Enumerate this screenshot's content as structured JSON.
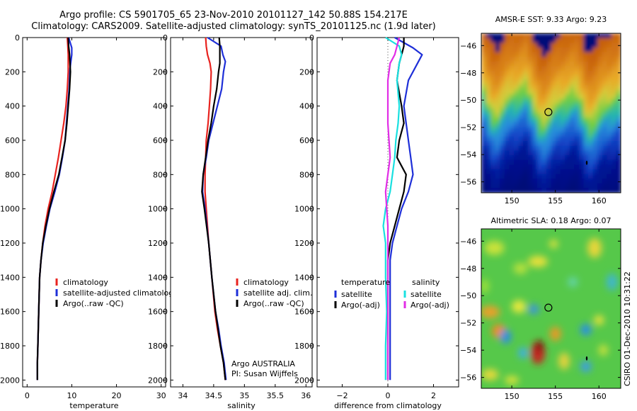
{
  "header": {
    "title_line1": "Argo profile: CS 5901705_65 23-Nov-2010 20101127_142 50.88S 154.217E",
    "title_line2": "Climatology: CARS2009. Satellite-adjusted climatology: synTS_20101125.nc (1.9d later)"
  },
  "colors": {
    "climatology": "#e8231f",
    "satellite": "#1e2fd8",
    "argo": "#000000",
    "cyan": "#19e0e0",
    "magenta": "#e12de6"
  },
  "chart_data": [
    {
      "type": "line",
      "id": "temperature",
      "xlabel": "temperature",
      "ylabel": "",
      "xlim": [
        -1,
        31
      ],
      "ylim": [
        2040,
        0
      ],
      "x_ticks": [
        0,
        10,
        20,
        30
      ],
      "y_ticks": [
        0,
        200,
        400,
        600,
        800,
        1000,
        1200,
        1400,
        1600,
        1800,
        2000
      ],
      "legend": [
        "climatology",
        "satellite-adjusted climatology",
        "Argo(..raw -QC)"
      ],
      "series": [
        {
          "name": "climatology",
          "color_key": "climatology",
          "x": [
            9.0,
            9.1,
            9.2,
            9.2,
            9.0,
            8.7,
            8.2,
            7.6,
            7.0,
            6.3,
            5.6,
            4.7,
            4.0,
            3.5,
            3.1,
            2.8,
            2.6,
            2.4,
            2.3,
            2.3
          ],
          "y": [
            0,
            50,
            100,
            200,
            300,
            400,
            500,
            600,
            700,
            800,
            900,
            1000,
            1100,
            1200,
            1300,
            1400,
            1600,
            1800,
            1900,
            2000
          ]
        },
        {
          "name": "satellite-adjusted climatology",
          "color_key": "satellite",
          "x": [
            9.3,
            10.0,
            10.0,
            9.6,
            9.4,
            9.1,
            8.8,
            8.5,
            7.9,
            7.2,
            6.2,
            5.1,
            4.3,
            3.6,
            3.1,
            2.8,
            2.6,
            2.4,
            2.3,
            2.3
          ],
          "y": [
            0,
            60,
            100,
            180,
            300,
            400,
            500,
            600,
            700,
            800,
            900,
            1000,
            1100,
            1200,
            1300,
            1400,
            1600,
            1800,
            1900,
            2000
          ]
        },
        {
          "name": "Argo(..raw -QC)",
          "color_key": "argo",
          "x": [
            9.2,
            9.3,
            9.5,
            9.7,
            9.5,
            9.2,
            8.9,
            8.5,
            7.8,
            7.1,
            6.0,
            5.0,
            4.2,
            3.5,
            3.1,
            2.8,
            2.6,
            2.4,
            2.3,
            2.3
          ],
          "y": [
            0,
            50,
            100,
            200,
            300,
            400,
            500,
            600,
            700,
            800,
            900,
            1000,
            1100,
            1200,
            1300,
            1400,
            1600,
            1800,
            1900,
            2000
          ]
        }
      ]
    },
    {
      "type": "line",
      "id": "salinity",
      "xlabel": "salinity",
      "ylabel": "",
      "xlim": [
        33.8,
        36.1
      ],
      "ylim": [
        2040,
        0
      ],
      "x_ticks": [
        34,
        34.5,
        35,
        35.5,
        36
      ],
      "x_tick_labels": [
        "34",
        "34.5",
        "35",
        "35.5",
        "36"
      ],
      "y_ticks": [
        0,
        200,
        400,
        600,
        800,
        1000,
        1200,
        1400,
        1600,
        1800,
        2000
      ],
      "legend": [
        "climatology",
        "satellite adj. clim.",
        "Argo(..raw -QC)"
      ],
      "annotation": [
        "Argo AUSTRALIA",
        "PI: Susan Wijffels"
      ],
      "series": [
        {
          "name": "climatology",
          "color_key": "climatology",
          "x": [
            34.37,
            34.38,
            34.4,
            34.44,
            34.46,
            34.45,
            34.43,
            34.41,
            34.38,
            34.37,
            34.36,
            34.36,
            34.38,
            34.42,
            34.47,
            34.52,
            34.56,
            34.61,
            34.66,
            34.69
          ],
          "y": [
            0,
            50,
            100,
            150,
            200,
            300,
            400,
            500,
            600,
            700,
            800,
            900,
            1000,
            1200,
            1400,
            1600,
            1700,
            1800,
            1900,
            2000
          ]
        },
        {
          "name": "satellite adj. clim.",
          "color_key": "satellite",
          "x": [
            34.4,
            34.62,
            34.65,
            34.69,
            34.66,
            34.63,
            34.56,
            34.49,
            34.42,
            34.38,
            34.33,
            34.32,
            34.36,
            34.42,
            34.47,
            34.53,
            34.58,
            34.62,
            34.67,
            34.7
          ],
          "y": [
            0,
            50,
            100,
            140,
            200,
            300,
            400,
            500,
            600,
            700,
            800,
            900,
            1000,
            1200,
            1400,
            1600,
            1700,
            1800,
            1900,
            2000
          ]
        },
        {
          "name": "Argo(..raw -QC)",
          "color_key": "argo",
          "x": [
            34.59,
            34.6,
            34.6,
            34.6,
            34.58,
            34.55,
            34.5,
            34.46,
            34.41,
            34.37,
            34.33,
            34.31,
            34.35,
            34.42,
            34.47,
            34.53,
            34.57,
            34.61,
            34.66,
            34.69
          ],
          "y": [
            0,
            50,
            100,
            150,
            200,
            300,
            400,
            500,
            600,
            700,
            800,
            900,
            1000,
            1200,
            1400,
            1600,
            1700,
            1800,
            1900,
            2000
          ]
        }
      ]
    },
    {
      "type": "line",
      "id": "difference",
      "xlabel": "difference from climatology",
      "ylabel": "",
      "xlim": [
        -3.1,
        3.1
      ],
      "ylim": [
        2040,
        0
      ],
      "x_ticks": [
        -2,
        0,
        2
      ],
      "y_ticks": [
        0,
        200,
        400,
        600,
        800,
        1000,
        1200,
        1400,
        1600,
        1800,
        2000
      ],
      "zero_line": 0,
      "legend_headers": [
        "temperature",
        "salinity"
      ],
      "legend": [
        {
          "label": "satellite",
          "color_key": "satellite",
          "column": 0
        },
        {
          "label": "Argo(-adj)",
          "color_key": "argo",
          "column": 0
        },
        {
          "label": "satellite",
          "color_key": "cyan",
          "column": 1
        },
        {
          "label": "Argo(-adj)",
          "color_key": "magenta",
          "column": 1
        }
      ],
      "series": [
        {
          "name": "temperature satellite",
          "color_key": "satellite",
          "x": [
            0.3,
            1.1,
            1.5,
            1.3,
            0.9,
            0.7,
            0.8,
            0.9,
            1.0,
            1.1,
            0.9,
            0.6,
            0.4,
            0.2,
            0.1,
            0.1,
            0.1,
            0.1
          ],
          "y": [
            0,
            60,
            100,
            150,
            250,
            400,
            500,
            600,
            700,
            800,
            900,
            1000,
            1100,
            1200,
            1300,
            1500,
            1800,
            2000
          ]
        },
        {
          "name": "temperature Argo(-adj)",
          "color_key": "argo",
          "x": [
            0.7,
            0.7,
            0.6,
            0.5,
            0.4,
            0.6,
            0.7,
            0.5,
            0.4,
            0.8,
            0.7,
            0.5,
            0.3,
            0.1,
            0.0,
            0.0,
            0.0,
            0.0
          ],
          "y": [
            0,
            50,
            100,
            150,
            250,
            400,
            500,
            600,
            700,
            800,
            900,
            1000,
            1100,
            1200,
            1300,
            1500,
            1800,
            2000
          ]
        },
        {
          "name": "salinity satellite",
          "color_key": "cyan",
          "x": [
            -0.1,
            0.5,
            0.6,
            0.5,
            0.4,
            0.5,
            0.45,
            0.35,
            0.3,
            0.2,
            0.1,
            -0.1,
            -0.2,
            -0.1,
            -0.1,
            -0.05,
            -0.1,
            -0.1
          ],
          "y": [
            0,
            50,
            100,
            150,
            250,
            400,
            500,
            600,
            700,
            800,
            900,
            1000,
            1100,
            1200,
            1400,
            1600,
            1800,
            2000
          ]
        },
        {
          "name": "salinity Argo(-adj)",
          "color_key": "magenta",
          "x": [
            0.5,
            0.4,
            0.3,
            0.1,
            0.0,
            0.0,
            0.0,
            0.05,
            0.1,
            0.0,
            -0.1,
            -0.05,
            0.0,
            0.0,
            0.0,
            0.0,
            0.0,
            0.0
          ],
          "y": [
            0,
            50,
            100,
            150,
            250,
            400,
            500,
            600,
            700,
            800,
            900,
            1000,
            1100,
            1200,
            1400,
            1600,
            1800,
            2000
          ]
        }
      ]
    },
    {
      "type": "heatmap",
      "id": "sst",
      "title": "AMSR-E SST: 9.33 Argo: 9.23",
      "xlim": [
        146.5,
        162.5
      ],
      "ylim": [
        -56.8,
        -45.1
      ],
      "x_ticks": [
        150,
        155,
        160
      ],
      "y_ticks": [
        -46,
        -48,
        -50,
        -52,
        -54,
        -56
      ],
      "marker": {
        "lon": 154.2,
        "lat": -50.88
      }
    },
    {
      "type": "heatmap",
      "id": "sla",
      "title": "Altimetric SLA: 0.18 Argo: 0.07",
      "xlim": [
        146.5,
        162.5
      ],
      "ylim": [
        -56.8,
        -45.1
      ],
      "x_ticks": [
        150,
        155,
        160
      ],
      "y_ticks": [
        -46,
        -48,
        -50,
        -52,
        -54,
        -56
      ],
      "marker": {
        "lon": 154.2,
        "lat": -50.88
      }
    }
  ],
  "footer": {
    "stamp": "CSIRO 01-Dec-2010 10:31:22"
  }
}
